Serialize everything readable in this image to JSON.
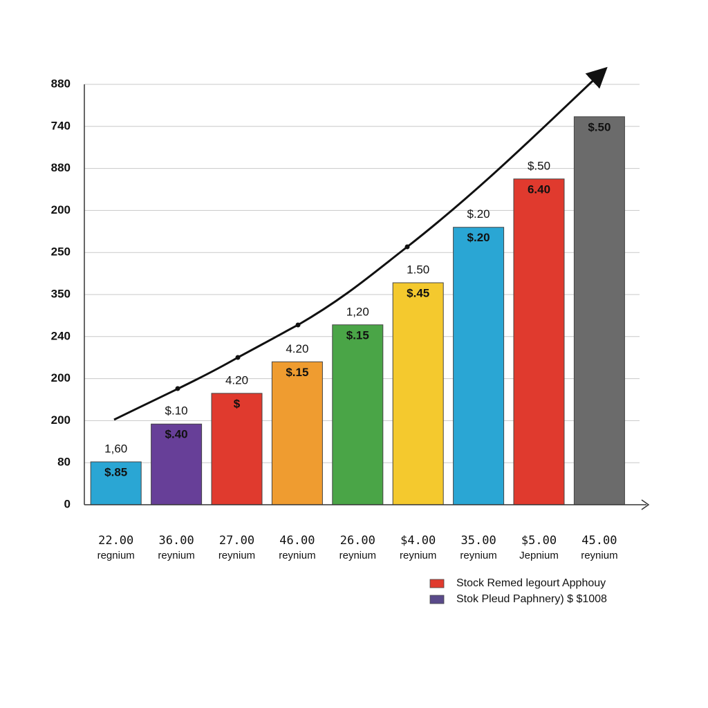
{
  "chart_data": {
    "type": "bar",
    "categories": [
      "22.00",
      "36.00",
      "27.00",
      "46.00",
      "26.00",
      "$4.00",
      "35.00",
      "$5.00",
      "45.00"
    ],
    "category_sublabels": [
      "regnium",
      "reynium",
      "reynium",
      "reynium",
      "reynium",
      "reynium",
      "reynium",
      "Jepnium",
      "reynium"
    ],
    "values": [
      1.02,
      1.92,
      2.65,
      3.4,
      4.28,
      5.28,
      6.6,
      7.75,
      9.23
    ],
    "colors": [
      "#2aa6d4",
      "#673f98",
      "#e03a2e",
      "#ef9c30",
      "#4aa547",
      "#f4c92e",
      "#2aa6d4",
      "#e03a2e",
      "#6b6b6b"
    ],
    "top_labels": [
      "1,60",
      "$.10",
      "4.20",
      "4.20",
      "1,20",
      "1.50",
      "$.20",
      "$.50",
      null
    ],
    "inner_labels": [
      "$.85",
      "$.40",
      "$",
      "$.15",
      "$.15",
      "$.45",
      "$.20",
      "6.40",
      "$.50"
    ],
    "ylim": [
      0,
      10
    ],
    "yticks": [
      {
        "value": 0,
        "label": "0"
      },
      {
        "value": 1,
        "label": "80"
      },
      {
        "value": 2,
        "label": "200"
      },
      {
        "value": 3,
        "label": "200"
      },
      {
        "value": 4,
        "label": "240"
      },
      {
        "value": 5,
        "label": "350"
      },
      {
        "value": 6,
        "label": "250"
      },
      {
        "value": 7,
        "label": "200"
      },
      {
        "value": 8,
        "label": "880"
      },
      {
        "value": 9,
        "label": "740"
      },
      {
        "value": 10,
        "label": "880"
      }
    ],
    "grid": true,
    "legend": [
      {
        "label": "Stock Remed legourt Apphouy",
        "color": "#e03a2e"
      },
      {
        "label": "Stok Pleud Paphnery) $ $1008",
        "color": "#5a4a8a"
      }
    ]
  }
}
